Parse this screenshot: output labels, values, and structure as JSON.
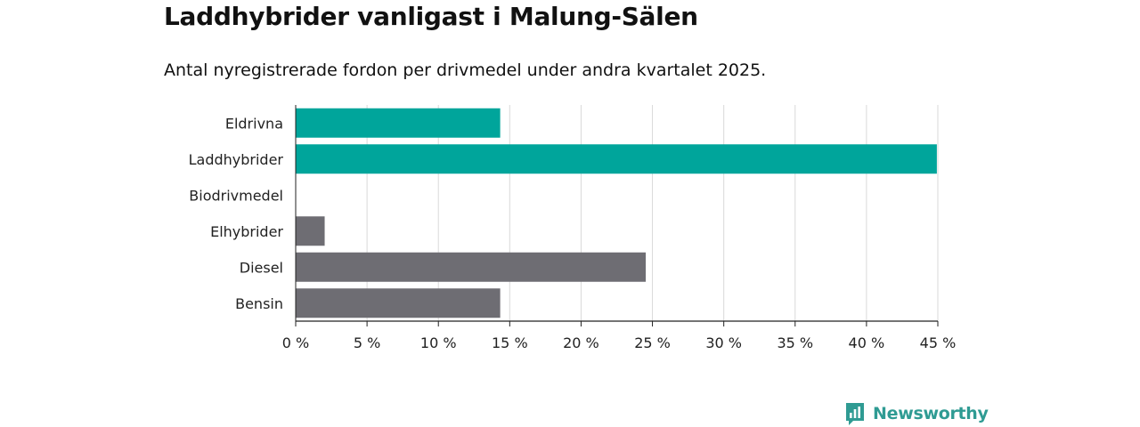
{
  "header": {
    "title": "Laddhybrider vanligast i Malung-Sälen",
    "subtitle": "Antal nyregistrerade fordon per drivmedel under andra kvartalet 2025."
  },
  "brand": {
    "name": "Newsworthy",
    "icon": "newsworthy-logo-icon",
    "color": "#2f9b93"
  },
  "colors": {
    "highlight": "#00a59b",
    "default": "#6e6d73",
    "grid": "#d9d9d9",
    "axis": "#222222"
  },
  "chart_data": {
    "type": "bar",
    "orientation": "horizontal",
    "categories": [
      "Eldrivna",
      "Laddhybrider",
      "Biodrivmedel",
      "Elhybrider",
      "Diesel",
      "Bensin"
    ],
    "values": [
      14.3,
      44.9,
      0,
      2.0,
      24.5,
      14.3
    ],
    "highlight": [
      true,
      true,
      false,
      false,
      false,
      false
    ],
    "xlim": [
      0,
      45
    ],
    "xticks": [
      0,
      5,
      10,
      15,
      20,
      25,
      30,
      35,
      40,
      45
    ],
    "xtick_labels": [
      "0 %",
      "5 %",
      "10 %",
      "15 %",
      "20 %",
      "25 %",
      "30 %",
      "35 %",
      "40 %",
      "45 %"
    ],
    "grid": true
  }
}
